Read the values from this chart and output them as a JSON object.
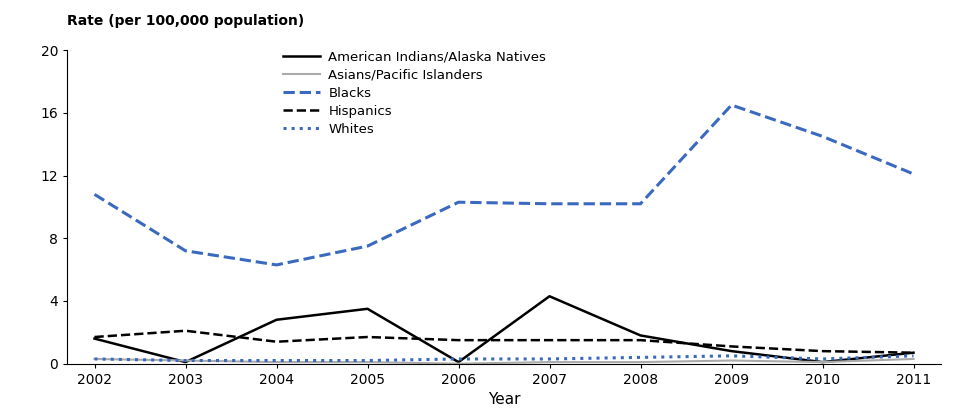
{
  "years": [
    2002,
    2003,
    2004,
    2005,
    2006,
    2007,
    2008,
    2009,
    2010,
    2011
  ],
  "series": {
    "American Indians/Alaska Natives": {
      "values": [
        1.6,
        0.1,
        2.8,
        3.5,
        0.1,
        4.3,
        1.8,
        0.8,
        0.1,
        0.7
      ],
      "color": "#000000",
      "linestyle": "solid",
      "linewidth": 1.8
    },
    "Asians/Pacific Islanders": {
      "values": [
        0.3,
        0.2,
        0.1,
        0.1,
        0.0,
        0.1,
        0.1,
        0.2,
        0.1,
        0.3
      ],
      "color": "#aaaaaa",
      "linestyle": "solid",
      "linewidth": 1.5
    },
    "Blacks": {
      "values": [
        10.8,
        7.2,
        6.3,
        7.5,
        10.3,
        10.2,
        10.2,
        16.5,
        14.5,
        12.1
      ],
      "color": "#3a6abf",
      "linestyle": "dashed",
      "linewidth": 2.2
    },
    "Hispanics": {
      "values": [
        1.7,
        2.1,
        1.4,
        1.7,
        1.5,
        1.5,
        1.5,
        1.1,
        0.8,
        0.7
      ],
      "color": "#000000",
      "linestyle": "dashed",
      "linewidth": 1.8
    },
    "Whites": {
      "values": [
        0.3,
        0.2,
        0.2,
        0.2,
        0.3,
        0.3,
        0.4,
        0.5,
        0.3,
        0.5
      ],
      "color": "#3a6abf",
      "linestyle": "dotted",
      "linewidth": 2.2
    }
  },
  "ylabel": "Rate (per 100,000 population)",
  "xlabel": "Year",
  "ylim": [
    0,
    20
  ],
  "yticks": [
    0,
    4,
    8,
    12,
    16,
    20
  ],
  "background_color": "#ffffff",
  "legend_order": [
    "American Indians/Alaska Natives",
    "Asians/Pacific Islanders",
    "Blacks",
    "Hispanics",
    "Whites"
  ]
}
